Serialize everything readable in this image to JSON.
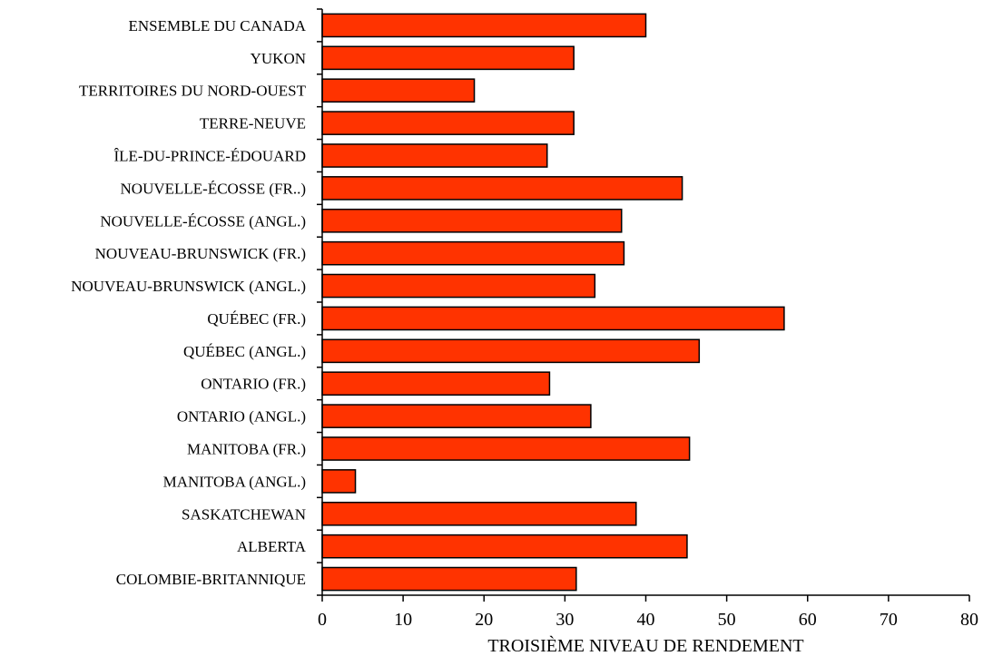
{
  "chart_data": {
    "type": "bar",
    "orientation": "horizontal",
    "categories": [
      "ENSEMBLE DU CANADA",
      "YUKON",
      "TERRITOIRES DU NORD-OUEST",
      "TERRE-NEUVE",
      "ÎLE-DU-PRINCE-ÉDOUARD",
      "NOUVELLE-ÉCOSSE (FR..)",
      "NOUVELLE-ÉCOSSE (ANGL.)",
      "NOUVEAU-BRUNSWICK (FR.)",
      "NOUVEAU-BRUNSWICK (ANGL.)",
      "QUÉBEC (FR.)",
      "QUÉBEC (ANGL.)",
      "ONTARIO (FR.)",
      "ONTARIO (ANGL.)",
      "MANITOBA (FR.)",
      "MANITOBA (ANGL.)",
      "SASKATCHEWAN",
      "ALBERTA",
      "COLOMBIE-BRITANNIQUE"
    ],
    "values": [
      40,
      31.1,
      18.8,
      31.1,
      27.8,
      44.5,
      37,
      37.3,
      33.7,
      57.1,
      46.6,
      28.1,
      33.2,
      45.4,
      4.1,
      38.8,
      45.1,
      31.4
    ],
    "xlabel": "TROISIÈME NIVEAU DE RENDEMENT",
    "ylabel": "",
    "xlim": [
      0,
      80
    ],
    "xticks": [
      0,
      10,
      20,
      30,
      40,
      50,
      60,
      70,
      80
    ],
    "bar_color": "#ff3300",
    "bar_outline": "#000000",
    "grid": false
  }
}
